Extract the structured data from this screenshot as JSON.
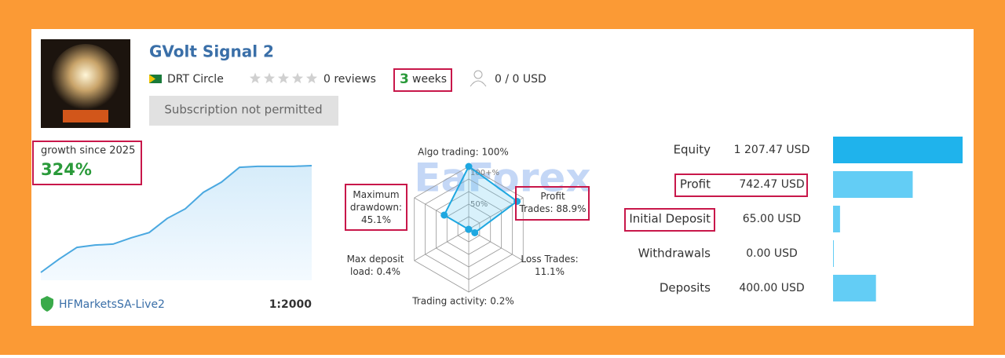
{
  "header": {
    "title": "GVolt Signal 2",
    "author": "DRT Circle",
    "reviews": "0 reviews",
    "duration_value": "3",
    "duration_unit": "weeks",
    "subscribers": "0 / 0 USD",
    "button": "Subscription not permitted"
  },
  "growth": {
    "label": "growth since 2025",
    "value": "324%",
    "broker": "HFMarketsSA-Live2",
    "leverage": "1:2000",
    "curve": [
      0,
      40,
      76,
      83,
      86,
      105,
      121,
      164,
      193,
      243,
      274,
      319,
      322,
      322,
      322,
      324
    ]
  },
  "radar": {
    "watermark": "EaForex",
    "ticks": [
      {
        "value": 100,
        "label": "100+%"
      },
      {
        "value": 50,
        "label": "50%"
      }
    ],
    "axes": [
      {
        "label": "Algo trading: 100%",
        "value": 100
      },
      {
        "label": "Profit Trades: 88.9%",
        "value": 88.9
      },
      {
        "label": "Loss Trades: 11.1%",
        "value": 11.1
      },
      {
        "label": "Trading activity: 0.2%",
        "value": 0.2
      },
      {
        "label": "Max deposit load: 0.4%",
        "value": 0.4
      },
      {
        "label": "Maximum drawdown: 45.1%",
        "value": 45.1
      }
    ]
  },
  "balance": {
    "rows": [
      {
        "label": "Equity",
        "value": 1207.47,
        "value_label": "1 207.47 USD",
        "color": "#1fb3ec"
      },
      {
        "label": "Profit",
        "value": 742.47,
        "value_label": "742.47 USD",
        "color": "#63cdf5"
      },
      {
        "label": "Initial Deposit",
        "value": 65.0,
        "value_label": "65.00 USD",
        "color": "#63cdf5"
      },
      {
        "label": "Withdrawals",
        "value": 0.0,
        "value_label": "0.00 USD",
        "color": "#63cdf5"
      },
      {
        "label": "Deposits",
        "value": 400.0,
        "value_label": "400.00 USD",
        "color": "#63cdf5"
      }
    ]
  }
}
